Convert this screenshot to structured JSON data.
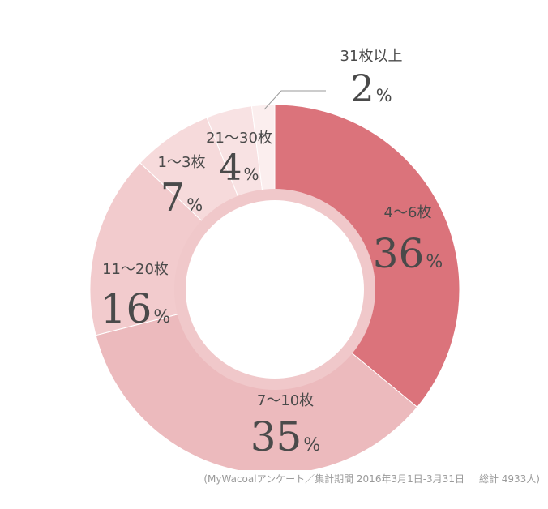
{
  "chart_data": {
    "type": "pie",
    "donut": true,
    "unit": "%",
    "slices": [
      {
        "label": "4〜6枚",
        "value": 36,
        "color": "#db737b"
      },
      {
        "label": "7〜10枚",
        "value": 35,
        "color": "#ecbabd"
      },
      {
        "label": "11〜20枚",
        "value": 16,
        "color": "#f2cbcd"
      },
      {
        "label": "1〜3枚",
        "value": 7,
        "color": "#f6dadb"
      },
      {
        "label": "21〜30枚",
        "value": 4,
        "color": "#f8e2e3"
      },
      {
        "label": "31枚以上",
        "value": 2,
        "color": "#fbeeee"
      }
    ],
    "inner_ring_color": "#f0c8ca",
    "leader_line_color": "#9a9a9a"
  },
  "source": {
    "survey": "(MyWacoalアンケート／集計期間 2016年3月1日-3月31日",
    "total": "総計 4933人)"
  }
}
